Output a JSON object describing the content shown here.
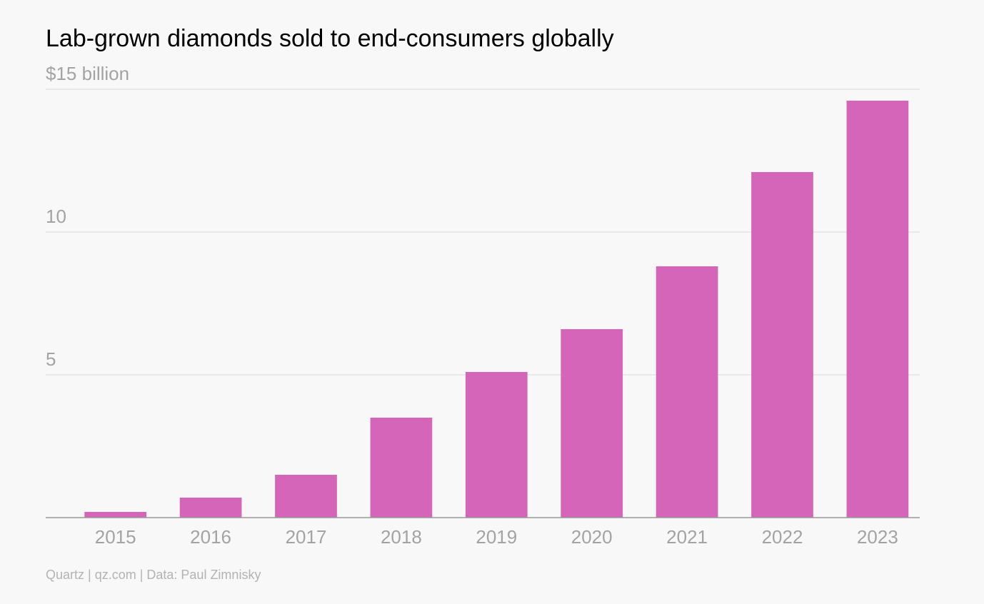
{
  "chart_data": {
    "type": "bar",
    "title": "Lab-grown diamonds sold to end-consumers globally",
    "source": "Quartz | qz.com | Data: Paul Zimnisky",
    "categories": [
      "2015",
      "2016",
      "2017",
      "2018",
      "2019",
      "2020",
      "2021",
      "2022",
      "2023"
    ],
    "values": [
      0.2,
      0.7,
      1.5,
      3.5,
      5.1,
      6.6,
      8.8,
      12.1,
      14.6
    ],
    "color": "#d465b9",
    "ylim": [
      0,
      15
    ],
    "yticks": [
      5,
      10,
      {
        "value": 15,
        "label": "$15 billion"
      }
    ],
    "grid": true
  }
}
